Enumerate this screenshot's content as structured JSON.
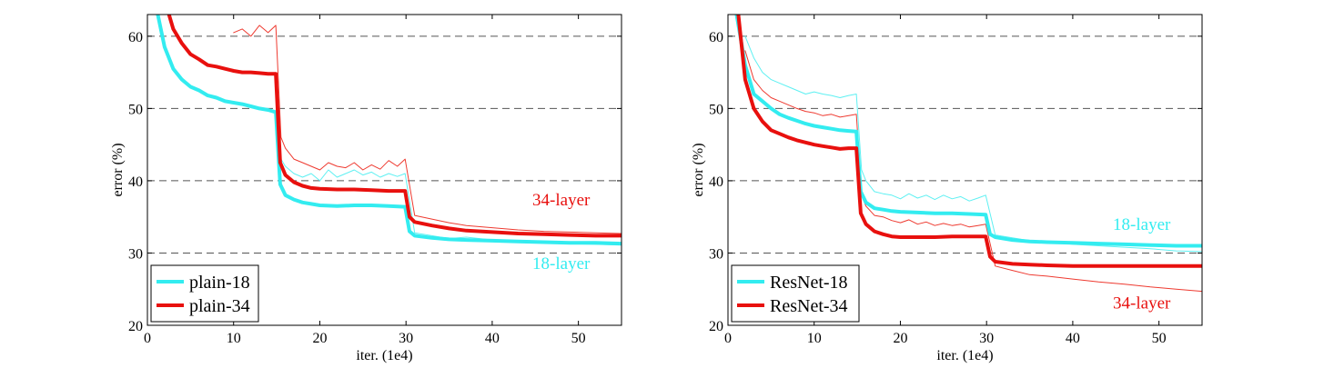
{
  "colors": {
    "cyan": "#33ecf0",
    "red": "#e8100e",
    "thin_cyan": "#5ef0f2",
    "thin_red": "#ee3a30",
    "grid": "#555555",
    "axis": "#000000"
  },
  "chart_data": [
    {
      "type": "line",
      "title": "",
      "xlabel": "iter. (1e4)",
      "ylabel": "error (%)",
      "xlim": [
        0,
        55
      ],
      "ylim": [
        20,
        63
      ],
      "xticks": [
        "0",
        "10",
        "20",
        "30",
        "40",
        "50"
      ],
      "yticks": [
        "20",
        "30",
        "40",
        "50",
        "60"
      ],
      "legend": {
        "placement": "bottom-left",
        "entries": [
          "plain-18",
          "plain-34"
        ]
      },
      "annotations": [
        {
          "text": "34-layer",
          "color": "red",
          "x": 48,
          "y": 36.6
        },
        {
          "text": "18-layer",
          "color": "cyan",
          "x": 48,
          "y": 27.8
        }
      ],
      "series": [
        {
          "name": "plain-18",
          "kind": "val",
          "color": "cyan",
          "x": [
            1.2,
            2,
            3,
            4,
            5,
            6,
            7,
            8,
            9,
            10,
            11,
            12,
            13,
            14,
            14.9,
            15.4,
            16,
            17,
            18,
            19,
            20,
            22,
            24,
            26,
            28,
            29.9,
            30.4,
            31,
            33,
            35,
            37,
            40,
            43,
            46,
            49,
            52,
            55
          ],
          "y": [
            63,
            58.5,
            55.5,
            54,
            53,
            52.5,
            51.8,
            51.5,
            51,
            50.8,
            50.6,
            50.3,
            50,
            49.8,
            49.5,
            39.5,
            38,
            37.4,
            37,
            36.8,
            36.6,
            36.5,
            36.6,
            36.6,
            36.5,
            36.4,
            33,
            32.4,
            32.1,
            31.9,
            31.8,
            31.7,
            31.6,
            31.5,
            31.4,
            31.4,
            31.3
          ]
        },
        {
          "name": "plain-34",
          "kind": "val",
          "color": "red",
          "x": [
            2.5,
            3,
            4,
            5,
            6,
            7,
            8,
            9,
            10,
            11,
            12,
            13,
            14,
            14.9,
            15.4,
            16,
            17,
            18,
            19,
            20,
            22,
            24,
            26,
            28,
            29.9,
            30.4,
            31,
            33,
            35,
            37,
            40,
            43,
            46,
            49,
            52,
            55
          ],
          "y": [
            63,
            61,
            59,
            57.5,
            56.8,
            56,
            55.8,
            55.5,
            55.2,
            55,
            55,
            54.9,
            54.8,
            54.8,
            42.5,
            40.8,
            39.8,
            39.3,
            39,
            38.9,
            38.8,
            38.8,
            38.7,
            38.6,
            38.6,
            35,
            34.3,
            33.8,
            33.4,
            33.1,
            32.9,
            32.7,
            32.6,
            32.5,
            32.4,
            32.4
          ]
        },
        {
          "name": "plain-18 (train)",
          "kind": "train",
          "color": "cyan",
          "x": [
            15.5,
            16,
            17,
            18,
            19,
            20,
            21,
            22,
            23,
            24,
            25,
            26,
            27,
            28,
            29,
            29.9,
            31,
            33,
            35,
            37,
            40,
            43,
            46,
            49,
            52,
            55
          ],
          "y": [
            43,
            42,
            41,
            40.5,
            41,
            40,
            41.5,
            40.5,
            41,
            41.5,
            40.8,
            41.2,
            40.5,
            41,
            40.6,
            41,
            32.8,
            32.4,
            32,
            32.2,
            31.8,
            31.5,
            31.6,
            31.3,
            31.2,
            31.1
          ]
        },
        {
          "name": "plain-34 (train)",
          "kind": "train",
          "color": "red",
          "x": [
            10,
            11,
            12,
            13,
            14,
            14.9,
            15.5,
            16,
            17,
            18,
            19,
            20,
            21,
            22,
            23,
            24,
            25,
            26,
            27,
            28,
            29,
            29.9,
            31,
            33,
            35,
            37,
            40,
            43,
            46,
            49,
            52,
            55
          ],
          "y": [
            60.5,
            61,
            60,
            61.5,
            60.5,
            61.5,
            46,
            44.5,
            43,
            42.5,
            42,
            41.5,
            42.5,
            42,
            41.8,
            42.5,
            41.5,
            42.2,
            41.6,
            42.8,
            42,
            43,
            35.2,
            34.7,
            34.2,
            33.8,
            33.5,
            33.2,
            33,
            32.9,
            32.8,
            32.7
          ]
        }
      ]
    },
    {
      "type": "line",
      "title": "",
      "xlabel": "iter. (1e4)",
      "ylabel": "error (%)",
      "xlim": [
        0,
        55
      ],
      "ylim": [
        20,
        63
      ],
      "xticks": [
        "0",
        "10",
        "20",
        "30",
        "40",
        "50"
      ],
      "yticks": [
        "20",
        "30",
        "40",
        "50",
        "60"
      ],
      "legend": {
        "placement": "bottom-left",
        "entries": [
          "ResNet-18",
          "ResNet-34"
        ]
      },
      "annotations": [
        {
          "text": "18-layer",
          "color": "cyan",
          "x": 48,
          "y": 33.2
        },
        {
          "text": "34-layer",
          "color": "red",
          "x": 48,
          "y": 22.3
        }
      ],
      "series": [
        {
          "name": "ResNet-18",
          "kind": "val",
          "color": "cyan",
          "x": [
            1,
            2,
            3,
            4,
            5,
            6,
            7,
            8,
            9,
            10,
            11,
            12,
            13,
            14,
            14.9,
            15.4,
            16,
            17,
            18,
            19,
            20,
            22,
            24,
            26,
            28,
            29.9,
            30.4,
            31,
            33,
            35,
            37,
            40,
            43,
            46,
            49,
            52,
            55
          ],
          "y": [
            63,
            56,
            52,
            51,
            50,
            49.2,
            48.7,
            48.3,
            47.9,
            47.6,
            47.4,
            47.2,
            47,
            46.9,
            46.8,
            38.5,
            37,
            36.2,
            36,
            35.8,
            35.7,
            35.6,
            35.5,
            35.5,
            35.4,
            35.3,
            32.6,
            32.2,
            31.8,
            31.6,
            31.5,
            31.4,
            31.3,
            31.2,
            31.1,
            31,
            31
          ]
        },
        {
          "name": "ResNet-34",
          "kind": "val",
          "color": "red",
          "x": [
            1.2,
            2,
            3,
            4,
            5,
            6,
            7,
            8,
            9,
            10,
            11,
            12,
            13,
            14,
            14.9,
            15.4,
            16,
            17,
            18,
            19,
            20,
            22,
            24,
            26,
            28,
            29.9,
            30.4,
            31,
            33,
            35,
            37,
            40,
            43,
            46,
            49,
            52,
            55
          ],
          "y": [
            63,
            54,
            50,
            48.2,
            47,
            46.5,
            46,
            45.6,
            45.3,
            45,
            44.8,
            44.6,
            44.4,
            44.5,
            44.5,
            35.5,
            34,
            33,
            32.6,
            32.3,
            32.2,
            32.2,
            32.2,
            32.3,
            32.3,
            32.3,
            29.5,
            28.8,
            28.5,
            28.4,
            28.3,
            28.2,
            28.2,
            28.2,
            28.2,
            28.2,
            28.2
          ]
        },
        {
          "name": "ResNet-18 (train)",
          "kind": "train",
          "color": "cyan",
          "x": [
            2,
            3,
            4,
            5,
            6,
            7,
            8,
            9,
            10,
            11,
            12,
            13,
            14,
            14.9,
            15.5,
            16,
            17,
            18,
            19,
            20,
            21,
            22,
            23,
            24,
            25,
            26,
            27,
            28,
            29,
            29.9,
            31,
            33,
            35,
            37,
            40,
            43,
            46,
            49,
            52,
            55
          ],
          "y": [
            60,
            57,
            55,
            54,
            53.5,
            53,
            52.5,
            52,
            52.3,
            52,
            51.8,
            51.5,
            51.8,
            52,
            41.5,
            40,
            38.5,
            38.2,
            38,
            37.5,
            38.2,
            37.6,
            38,
            37.4,
            38,
            37.5,
            37.8,
            37.2,
            37.6,
            38,
            32.5,
            32.1,
            31.7,
            31.6,
            31.2,
            31,
            30.8,
            30.6,
            30.3,
            30.2
          ]
        },
        {
          "name": "ResNet-34 (train)",
          "kind": "train",
          "color": "red",
          "x": [
            2,
            3,
            4,
            5,
            6,
            7,
            8,
            9,
            10,
            11,
            12,
            13,
            14,
            14.9,
            15.5,
            16,
            17,
            18,
            19,
            20,
            21,
            22,
            23,
            24,
            25,
            26,
            27,
            28,
            29,
            29.9,
            31,
            33,
            35,
            37,
            40,
            43,
            46,
            49,
            52,
            55
          ],
          "y": [
            58,
            54,
            52.5,
            51.5,
            51,
            50.5,
            50,
            49.6,
            49.4,
            49,
            49.2,
            48.8,
            49,
            49.2,
            38,
            36.5,
            35.2,
            35,
            34.5,
            34.2,
            34.6,
            34,
            34.3,
            33.8,
            34.1,
            33.8,
            34,
            33.6,
            33.8,
            34,
            28.2,
            27.6,
            27,
            26.8,
            26.4,
            26,
            25.7,
            25.3,
            25,
            24.7
          ]
        }
      ]
    }
  ]
}
